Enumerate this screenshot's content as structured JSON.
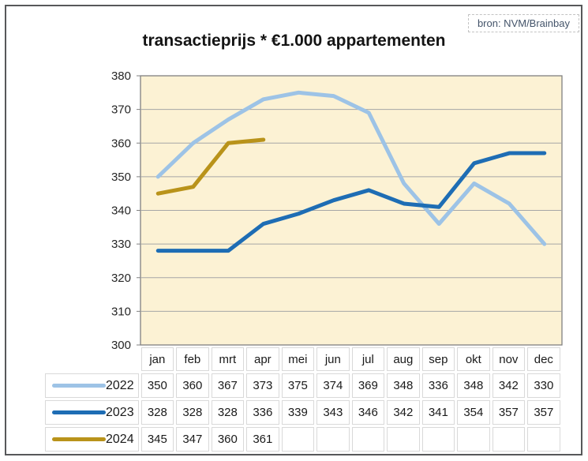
{
  "title": "transactieprijs * €1.000 appartementen",
  "source_label": "bron: NVM/Brainbay",
  "chart_data": {
    "type": "line",
    "title": "transactieprijs * €1.000 appartementen",
    "source": "bron: NVM/Brainbay",
    "categories": [
      "jan",
      "feb",
      "mrt",
      "apr",
      "mei",
      "jun",
      "jul",
      "aug",
      "sep",
      "okt",
      "nov",
      "dec"
    ],
    "series": [
      {
        "name": "2022",
        "color": "#9dc3e6",
        "values": [
          350,
          360,
          367,
          373,
          375,
          374,
          369,
          348,
          336,
          348,
          342,
          330
        ]
      },
      {
        "name": "2023",
        "color": "#1e6db4",
        "values": [
          328,
          328,
          328,
          336,
          339,
          343,
          346,
          342,
          341,
          354,
          357,
          357
        ]
      },
      {
        "name": "2024",
        "color": "#b9931a",
        "values": [
          345,
          347,
          360,
          361
        ]
      }
    ],
    "ylim": [
      300,
      380
    ],
    "ytick_step": 10,
    "yticks": [
      300,
      310,
      320,
      330,
      340,
      350,
      360,
      370,
      380
    ],
    "grid": true,
    "legend_position": "table-left",
    "colors": {
      "plot_bg": "#fcf2d4",
      "gridline": "#a6a6a6",
      "plot_border": "#808080",
      "axis_text": "#262626"
    }
  }
}
